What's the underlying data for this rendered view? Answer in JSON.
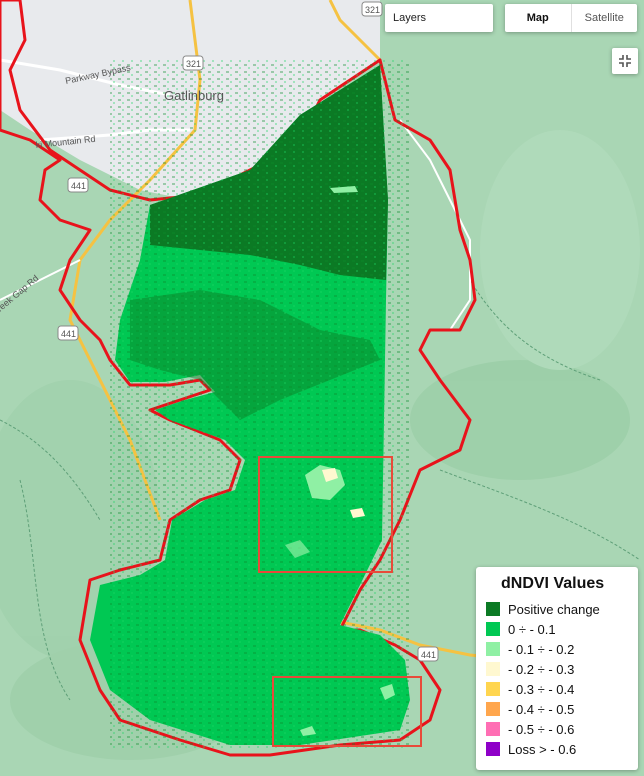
{
  "controls": {
    "layers_label": "Layers",
    "map_label": "Map",
    "satellite_label": "Satellite",
    "active_map_type": "Map"
  },
  "map_labels": {
    "town": "Gatlinburg",
    "road_bypass": "Parkway Bypass",
    "road_mountain": "ki Mountain Rd",
    "road_creek": "reek Gap Rd",
    "shield_321": "321",
    "shield_441": "441"
  },
  "legend": {
    "title": "dNDVI Values",
    "items": [
      {
        "label": "Positive change",
        "color": "#0b7a24"
      },
      {
        "label": "0 ÷ - 0.1",
        "color": "#00c853"
      },
      {
        "label": "- 0.1 ÷ - 0.2",
        "color": "#8ff0a4"
      },
      {
        "label": "- 0.2 ÷ - 0.3",
        "color": "#fff8d0"
      },
      {
        "label": "- 0.3 ÷ - 0.4",
        "color": "#ffd54f"
      },
      {
        "label": "- 0.4 ÷ - 0.5",
        "color": "#ffa64d"
      },
      {
        "label": "- 0.5 ÷ - 0.6",
        "color": "#ff6eb4"
      },
      {
        "label": "Loss > - 0.6",
        "color": "#8e00c8"
      }
    ]
  },
  "colors": {
    "burn_perimeter": "#e8131b",
    "highlight_box": "#e84a3a",
    "terrain": "#a9d6b4",
    "urban": "#e8eaed",
    "road": "#f5c242"
  }
}
